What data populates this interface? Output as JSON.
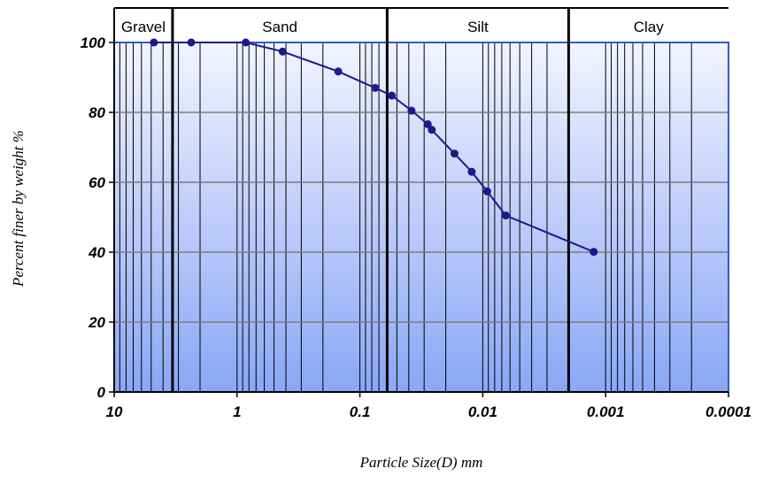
{
  "chart_data": {
    "type": "scatter",
    "xlabel": "Particle Size(D) mm",
    "ylabel": "Percent finer by weight %",
    "x_scale": "log",
    "x_reversed": true,
    "xlim": [
      10,
      0.0001
    ],
    "ylim": [
      0,
      100
    ],
    "x_ticks": [
      "10",
      "1",
      "0.1",
      "0.01",
      "0.001",
      "0.0001"
    ],
    "y_ticks": [
      "0",
      "20",
      "40",
      "60",
      "80",
      "100"
    ],
    "grid": true,
    "zones": [
      {
        "label": "Gravel",
        "from": 10,
        "to": 3.35
      },
      {
        "label": "Sand",
        "from": 3.35,
        "to": 0.06
      },
      {
        "label": "Silt",
        "from": 0.06,
        "to": 0.002
      },
      {
        "label": "Clay",
        "from": 0.002,
        "to": 0.0001
      }
    ],
    "zone_boundaries": [
      3.35,
      0.06,
      0.002
    ],
    "series": [
      {
        "x": [
          4.75,
          2.36,
          0.85,
          0.425,
          0.15,
          0.075,
          0.055,
          0.038,
          0.028,
          0.026,
          0.017,
          0.0123,
          0.0092,
          0.0065,
          0.00125
        ],
        "y": [
          100,
          100,
          100,
          97.4,
          91.7,
          87,
          84.8,
          80.5,
          76.6,
          75,
          68.2,
          63,
          57.4,
          50.5,
          40.1
        ],
        "color": "#1a1a8c"
      }
    ],
    "colors": {
      "plot_top": "#f2f4fe",
      "plot_bottom": "#8aa7f6",
      "frame": "#2b59d6",
      "line": "#1a1a8c"
    }
  }
}
